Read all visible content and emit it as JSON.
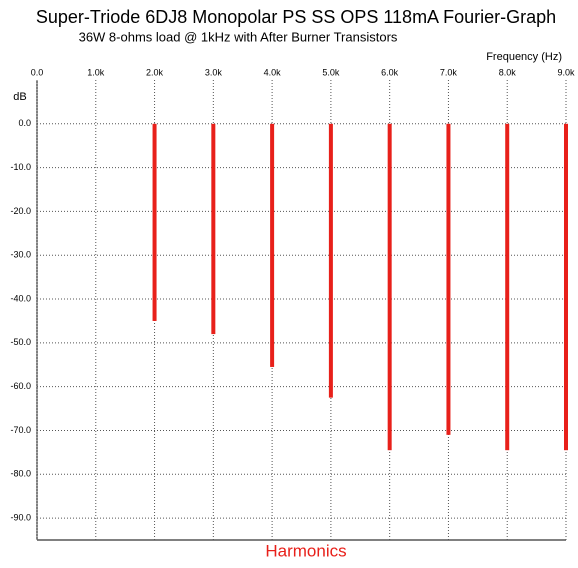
{
  "chart_data": {
    "type": "bar",
    "title": "Super-Triode 6DJ8 Monopolar PS SS OPS 118mA Fourier-Graph",
    "subtitle": "36W 8-ohms load @ 1kHz with After Burner Transistors",
    "x_label": "Frequency  (Hz)",
    "y_label": "dB",
    "bottom_label": "Harmonics",
    "x": [
      2000,
      3000,
      4000,
      5000,
      6000,
      7000,
      8000,
      9000
    ],
    "values": [
      -45,
      -48,
      -55.5,
      -62.5,
      -74.5,
      -71,
      -74.5,
      -74.5
    ],
    "color": "#e8201a",
    "xlim": [
      0,
      9000
    ],
    "xticks": [
      {
        "value": 0,
        "label": "0.0"
      },
      {
        "value": 1000,
        "label": "1.0k"
      },
      {
        "value": 2000,
        "label": "2.0k"
      },
      {
        "value": 3000,
        "label": "3.0k"
      },
      {
        "value": 4000,
        "label": "4.0k"
      },
      {
        "value": 5000,
        "label": "5.0k"
      },
      {
        "value": 6000,
        "label": "6.0k"
      },
      {
        "value": 7000,
        "label": "7.0k"
      },
      {
        "value": 8000,
        "label": "8.0k"
      },
      {
        "value": 9000,
        "label": "9.0k"
      }
    ],
    "ylim": [
      -95,
      10
    ],
    "yticks": [
      {
        "value": 0,
        "label": "0.0"
      },
      {
        "value": -10,
        "label": "-10.0"
      },
      {
        "value": -20,
        "label": "-20.0"
      },
      {
        "value": -30,
        "label": "-30.0"
      },
      {
        "value": -40,
        "label": "-40.0"
      },
      {
        "value": -50,
        "label": "-50.0"
      },
      {
        "value": -60,
        "label": "-60.0"
      },
      {
        "value": -70,
        "label": "-70.0"
      },
      {
        "value": -80,
        "label": "-80.0"
      },
      {
        "value": -90,
        "label": "-90.0"
      }
    ],
    "grid": true
  }
}
